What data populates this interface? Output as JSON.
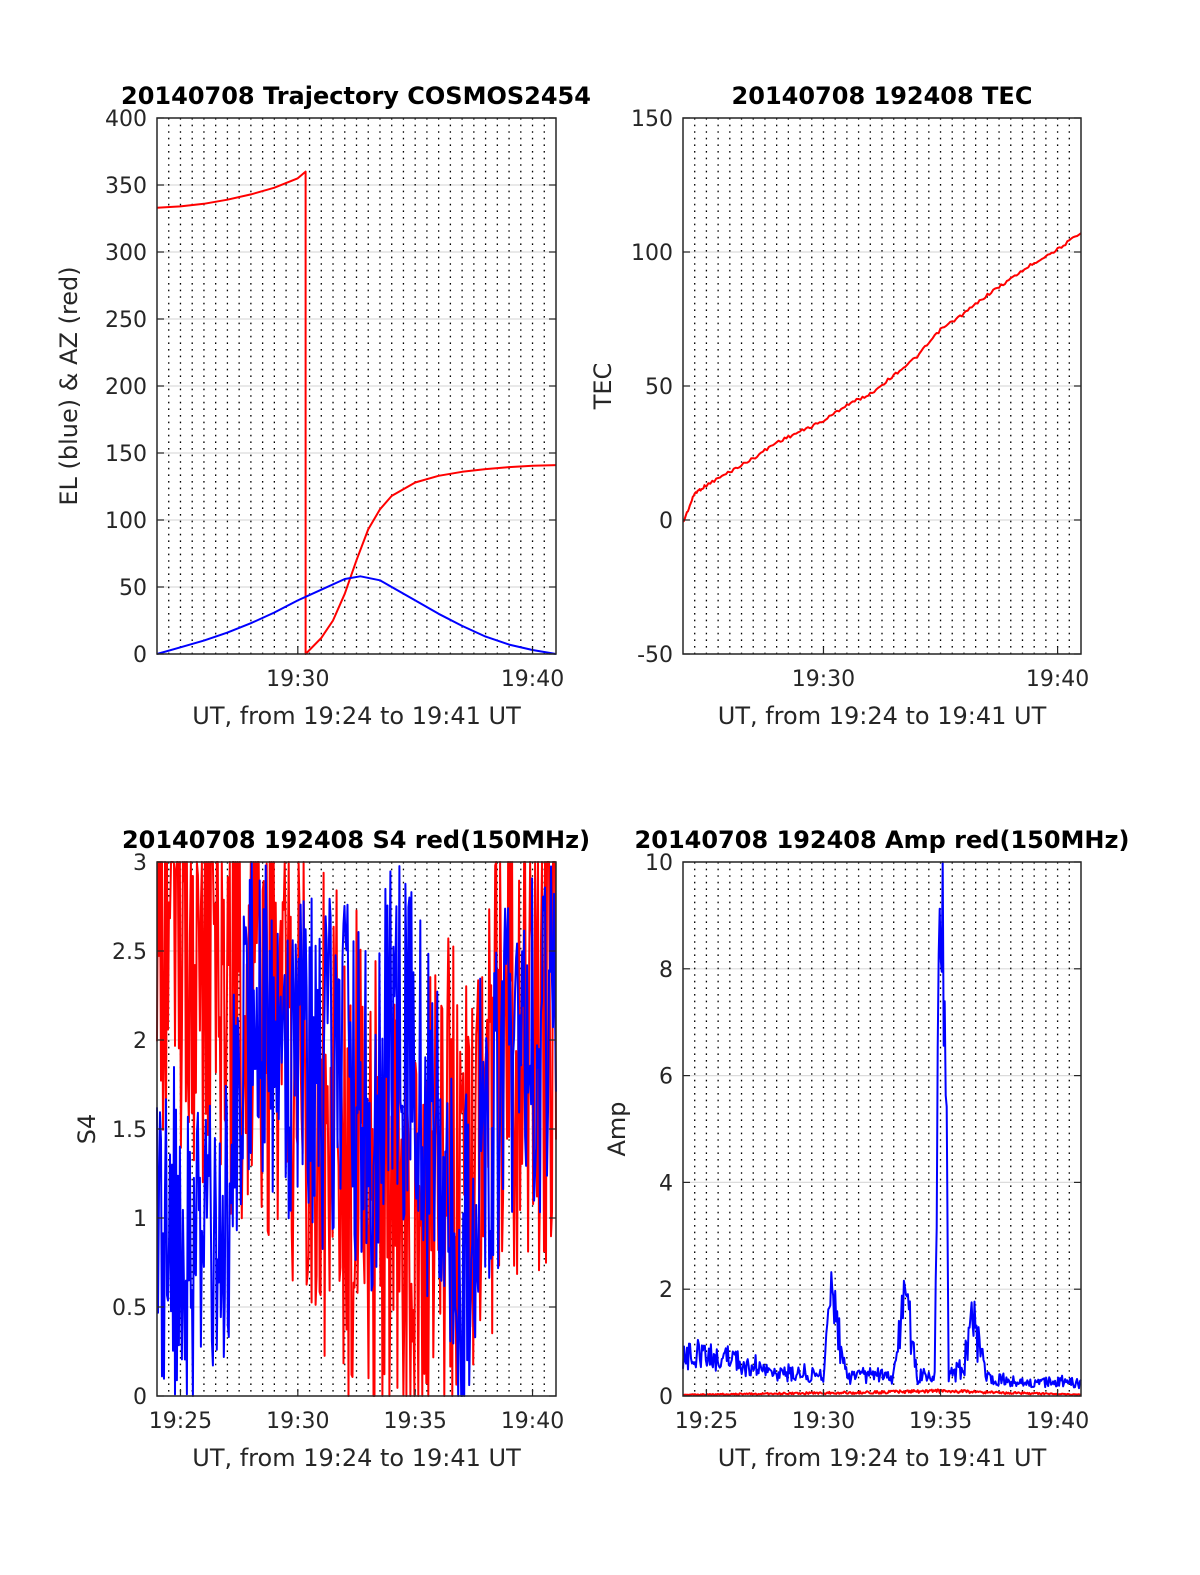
{
  "chart_data": [
    {
      "type": "line",
      "title": "20140708 Trajectory COSMOS2454",
      "xlabel": "UT, from 19:24 to 19:41 UT",
      "ylabel": "EL (blue) & AZ (red)",
      "x_range": [
        "19:24",
        "19:41"
      ],
      "ylim": [
        0,
        400
      ],
      "xticks": [
        "19:30",
        "19:40"
      ],
      "yticks": [
        "0",
        "50",
        "100",
        "150",
        "200",
        "250",
        "300",
        "350",
        "400"
      ],
      "grid": true,
      "series": [
        {
          "name": "AZ",
          "color": "#ff0000",
          "x": [
            "19:24:00",
            "19:25:00",
            "19:26:00",
            "19:27:00",
            "19:28:00",
            "19:29:00",
            "19:30:00",
            "19:30:20",
            "19:30:20",
            "19:31:00",
            "19:31:30",
            "19:32:00",
            "19:32:30",
            "19:33:00",
            "19:33:30",
            "19:34:00",
            "19:35:00",
            "19:36:00",
            "19:37:00",
            "19:38:00",
            "19:39:00",
            "19:40:00",
            "19:41:00"
          ],
          "values": [
            333,
            334,
            336,
            339,
            343,
            348,
            355,
            360,
            0,
            12,
            25,
            45,
            70,
            93,
            108,
            118,
            128,
            133,
            136,
            138,
            139.5,
            140.5,
            141
          ]
        },
        {
          "name": "EL",
          "color": "#0000ff",
          "x": [
            "19:24:00",
            "19:25:00",
            "19:26:00",
            "19:27:00",
            "19:28:00",
            "19:29:00",
            "19:30:00",
            "19:31:00",
            "19:32:00",
            "19:32:40",
            "19:33:30",
            "19:34:00",
            "19:35:00",
            "19:36:00",
            "19:37:00",
            "19:38:00",
            "19:39:00",
            "19:40:00",
            "19:41:00"
          ],
          "values": [
            0,
            5,
            10,
            16,
            23,
            31,
            40,
            48,
            56,
            58,
            55,
            50,
            40,
            30,
            21,
            13,
            7,
            3,
            0
          ]
        }
      ]
    },
    {
      "type": "line",
      "title": "20140708 192408 TEC",
      "xlabel": "UT, from 19:24 to 19:41 UT",
      "ylabel": "TEC",
      "x_range": [
        "19:24",
        "19:41"
      ],
      "ylim": [
        -50,
        150
      ],
      "xticks": [
        "19:30",
        "19:40"
      ],
      "yticks": [
        "-50",
        "0",
        "50",
        "100",
        "150"
      ],
      "grid": true,
      "series": [
        {
          "name": "TEC",
          "color": "#ff0000",
          "x": [
            "19:24:00",
            "19:24:30",
            "19:25:00",
            "19:26:00",
            "19:27:00",
            "19:28:00",
            "19:29:00",
            "19:30:00",
            "19:31:00",
            "19:32:00",
            "19:33:00",
            "19:34:00",
            "19:35:00",
            "19:36:00",
            "19:37:00",
            "19:38:00",
            "19:39:00",
            "19:40:00",
            "19:41:00"
          ],
          "values": [
            -1,
            10,
            13,
            18,
            23,
            29,
            33,
            37,
            43,
            47,
            54,
            61,
            71,
            77,
            84,
            90,
            96,
            101,
            107
          ]
        }
      ]
    },
    {
      "type": "line",
      "title": "20140708 192408 S4 red(150MHz)",
      "xlabel": "UT, from 19:24 to 19:41 UT",
      "ylabel": "S4",
      "x_range": [
        "19:24",
        "19:41"
      ],
      "ylim": [
        0,
        3
      ],
      "xticks": [
        "19:25",
        "19:30",
        "19:35",
        "19:40"
      ],
      "yticks": [
        "0",
        "0.5",
        "1",
        "1.5",
        "2",
        "2.5",
        "3"
      ],
      "grid": true,
      "series": [
        {
          "name": "S4 red",
          "color": "#ff0000",
          "x": [
            "19:24:00",
            "19:25:00",
            "19:26:00",
            "19:27:00",
            "19:28:00",
            "19:29:00",
            "19:30:00",
            "19:31:00",
            "19:32:00",
            "19:33:00",
            "19:34:00",
            "19:35:00",
            "19:36:00",
            "19:37:00",
            "19:38:00",
            "19:39:00",
            "19:40:00",
            "19:41:00"
          ],
          "values": [
            2.9,
            2.7,
            2.6,
            2.4,
            2.2,
            2.0,
            1.8,
            1.6,
            1.4,
            1.2,
            1.0,
            0.9,
            1.2,
            1.5,
            1.7,
            1.9,
            2.0,
            2.1
          ]
        },
        {
          "name": "S4 blue",
          "color": "#0000ff",
          "x": [
            "19:24:00",
            "19:25:00",
            "19:26:00",
            "19:27:00",
            "19:28:00",
            "19:29:00",
            "19:30:00",
            "19:31:00",
            "19:32:00",
            "19:33:00",
            "19:34:00",
            "19:35:00",
            "19:36:00",
            "19:37:00",
            "19:38:00",
            "19:39:00",
            "19:40:00",
            "19:41:00"
          ],
          "values": [
            0.95,
            0.95,
            0.95,
            1.2,
            2.2,
            2.0,
            1.9,
            1.8,
            1.9,
            1.5,
            2.1,
            1.8,
            1.3,
            0.75,
            1.6,
            1.8,
            2.0,
            2.0
          ]
        }
      ]
    },
    {
      "type": "line",
      "title": "20140708 192408 Amp red(150MHz)",
      "xlabel": "UT, from 19:24 to 19:41 UT",
      "ylabel": "Amp",
      "x_range": [
        "19:24",
        "19:41"
      ],
      "ylim": [
        0,
        10
      ],
      "xticks": [
        "19:25",
        "19:30",
        "19:35",
        "19:40"
      ],
      "yticks": [
        "0",
        "2",
        "4",
        "6",
        "8",
        "10"
      ],
      "grid": true,
      "series": [
        {
          "name": "Amp blue",
          "color": "#0000ff",
          "x": [
            "19:24:00",
            "19:25:00",
            "19:26:00",
            "19:27:00",
            "19:28:00",
            "19:29:00",
            "19:30:00",
            "19:30:20",
            "19:31:00",
            "19:32:00",
            "19:33:00",
            "19:33:30",
            "19:34:00",
            "19:34:45",
            "19:35:00",
            "19:35:10",
            "19:35:20",
            "19:36:00",
            "19:36:20",
            "19:37:00",
            "19:38:00",
            "19:39:00",
            "19:40:00",
            "19:41:00"
          ],
          "values": [
            0.6,
            0.7,
            0.6,
            0.5,
            0.35,
            0.4,
            0.3,
            1.6,
            0.3,
            0.35,
            0.3,
            1.7,
            0.3,
            0.4,
            8.5,
            9.0,
            0.3,
            0.5,
            1.3,
            0.3,
            0.25,
            0.2,
            0.25,
            0.2
          ]
        },
        {
          "name": "Amp red",
          "color": "#ff0000",
          "x": [
            "19:24:00",
            "19:30:20",
            "19:35:10",
            "19:41:00"
          ],
          "values": [
            0.02,
            0.05,
            0.08,
            0.02
          ]
        }
      ]
    }
  ]
}
